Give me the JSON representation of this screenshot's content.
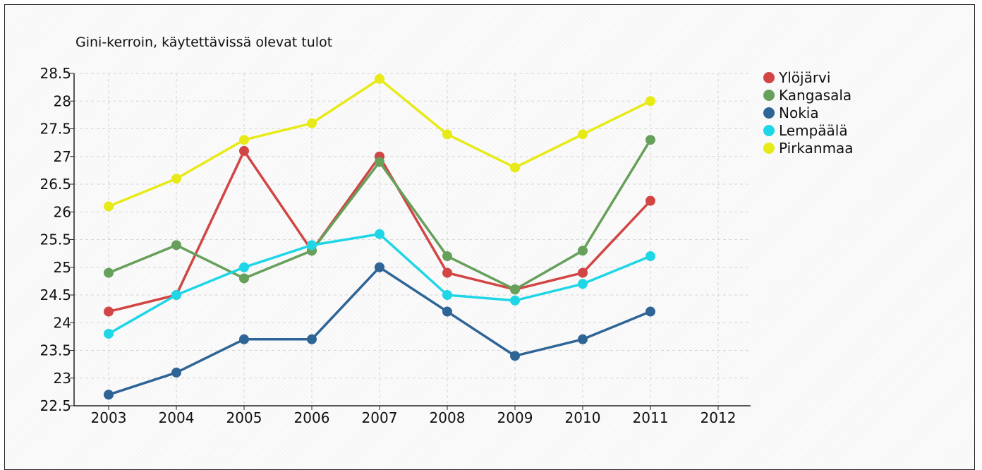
{
  "chart_data": {
    "type": "line",
    "title": "Gini-kerroin, käytettävissä olevat tulot",
    "xlabel": "",
    "ylabel": "",
    "x": [
      "2003",
      "2004",
      "2005",
      "2006",
      "2007",
      "2008",
      "2009",
      "2010",
      "2011",
      "2012"
    ],
    "y_ticks": [
      "22.5",
      "23",
      "23.5",
      "24",
      "24.5",
      "25",
      "25.5",
      "26",
      "26.5",
      "27",
      "27.5",
      "28",
      "28.5"
    ],
    "ylim": [
      22.5,
      28.5
    ],
    "grid": true,
    "legend_position": "right",
    "series": [
      {
        "name": "Ylöjärvi",
        "color": "#d14545",
        "values": [
          24.2,
          24.5,
          27.1,
          25.3,
          27.0,
          24.9,
          24.6,
          24.9,
          26.2,
          null
        ]
      },
      {
        "name": "Kangasala",
        "color": "#66a05a",
        "values": [
          24.9,
          25.4,
          24.8,
          25.3,
          26.9,
          25.2,
          24.6,
          25.3,
          27.3,
          null
        ]
      },
      {
        "name": "Nokia",
        "color": "#2f6496",
        "values": [
          22.7,
          23.1,
          23.7,
          23.7,
          25.0,
          24.2,
          23.4,
          23.7,
          24.2,
          null
        ]
      },
      {
        "name": "Lempäälä",
        "color": "#1fd6e6",
        "values": [
          23.8,
          24.5,
          25.0,
          25.4,
          25.6,
          24.5,
          24.4,
          24.7,
          25.2,
          null
        ]
      },
      {
        "name": "Pirkanmaa",
        "color": "#e8ea18",
        "values": [
          26.1,
          26.6,
          27.3,
          27.6,
          28.4,
          27.4,
          26.8,
          27.4,
          28.0,
          null
        ]
      }
    ]
  }
}
